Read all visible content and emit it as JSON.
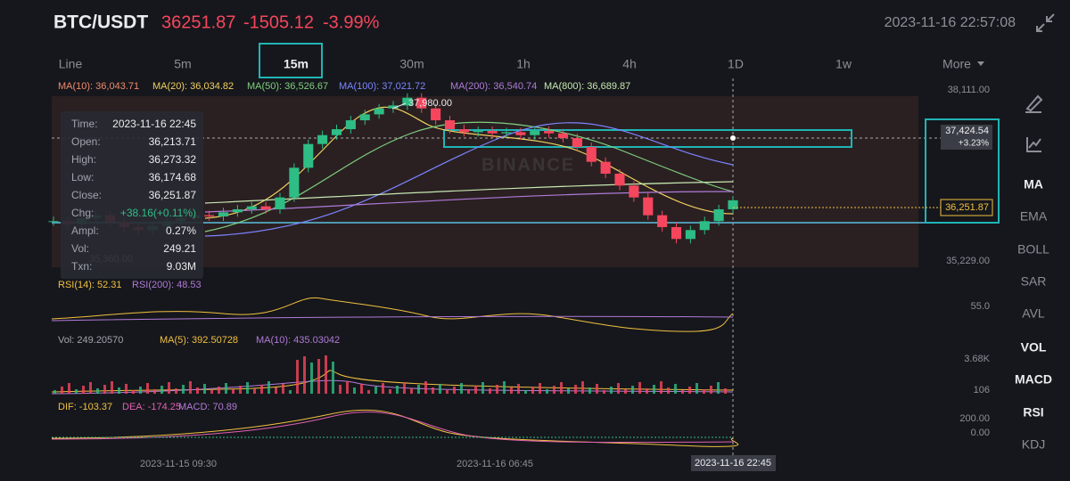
{
  "header": {
    "symbol": "BTC/USDT",
    "price": "36251.87",
    "change": "-1505.12",
    "change_pct": "-3.99%",
    "datetime": "2023-11-16 22:57:08"
  },
  "intervals": {
    "items": [
      "Line",
      "5m",
      "15m",
      "30m",
      "1h",
      "4h",
      "1D",
      "1w",
      "More"
    ],
    "selected": 2
  },
  "ma_legend": [
    {
      "label": "MA(10): 36,043.71",
      "color": "#f08a6a"
    },
    {
      "label": "MA(20): 36,034.82",
      "color": "#f0d060"
    },
    {
      "label": "MA(50): 36,526.67",
      "color": "#7fd07f"
    },
    {
      "label": "MA(100): 37,021.72",
      "color": "#7b84ff"
    },
    {
      "label": "MA(200): 36,540.74",
      "color": "#b07ad8"
    },
    {
      "label": "MA(800): 36,689.87",
      "color": "#c6e8b0"
    }
  ],
  "chart_data": {
    "type": "candlestick",
    "closes": [
      35900,
      35850,
      35950,
      36000,
      35880,
      35800,
      35750,
      35820,
      35900,
      35950,
      36000,
      35980,
      36050,
      36100,
      36150,
      36100,
      36300,
      36800,
      37200,
      37350,
      37450,
      37600,
      37700,
      37800,
      37850,
      37980,
      37800,
      37600,
      37450,
      37400,
      37420,
      37380,
      37400,
      37350,
      37420,
      37380,
      37300,
      37150,
      36900,
      36700,
      36500,
      36300,
      36000,
      35800,
      35600,
      35750,
      35900,
      36100,
      36251.87
    ],
    "up_color": "#2ebd85",
    "down_color": "#f6465d",
    "ylim": [
      35229,
      38111
    ],
    "yticks": [
      {
        "value": 38111,
        "label": "38,111.00"
      },
      {
        "value": 35229,
        "label": "35,229.00"
      }
    ],
    "high_label": "37,980.00",
    "low_label": "35,360.00",
    "last_price_label": "36,251.87",
    "crosshair_price": "37,424.54",
    "crosshair_pct": "+3.23%",
    "watermark": "BINANCE"
  },
  "tooltip": [
    [
      "Time:",
      "2023-11-16 22:45"
    ],
    [
      "Open:",
      "36,213.71"
    ],
    [
      "High:",
      "36,273.32"
    ],
    [
      "Low:",
      "36,174.68"
    ],
    [
      "Close:",
      "36,251.87"
    ],
    [
      "Chg:",
      "+38.16(+0.11%)"
    ],
    [
      "Ampl:",
      "0.27%"
    ],
    [
      "Vol:",
      "249.21"
    ],
    [
      "Txn:",
      "9.03M"
    ]
  ],
  "rsi": {
    "legend": [
      {
        "label": "RSI(14): 52.31",
        "color": "#f0c040"
      },
      {
        "label": "RSI(200): 48.53",
        "color": "#b07ad8"
      }
    ],
    "axis": "55.0"
  },
  "volume": {
    "legend": [
      {
        "label": "Vol: 249.20570",
        "color": "#a0a4ad"
      },
      {
        "label": "MA(5): 392.50728",
        "color": "#f0c040"
      },
      {
        "label": "MA(10): 435.03042",
        "color": "#b07ad8"
      }
    ],
    "axis_top": "3.68K",
    "axis_bottom": "106"
  },
  "macd": {
    "legend": [
      {
        "label": "DIF: -103.37",
        "color": "#f0c040"
      },
      {
        "label": "DEA: -174.25",
        "color": "#e060b0"
      },
      {
        "label": "MACD: 70.89",
        "color": "#b07ad8"
      }
    ],
    "axis_top": "200.00",
    "axis_bottom": "0.00"
  },
  "time_axis": [
    "2023-11-15 09:30",
    "2023-11-16 06:45"
  ],
  "crosshair_time": "2023-11-16 22:45",
  "side_menu": {
    "items": [
      "MA",
      "EMA",
      "BOLL",
      "SAR",
      "AVL",
      "VOL",
      "MACD",
      "RSI",
      "KDJ"
    ],
    "active": [
      0,
      5,
      6,
      7
    ]
  }
}
